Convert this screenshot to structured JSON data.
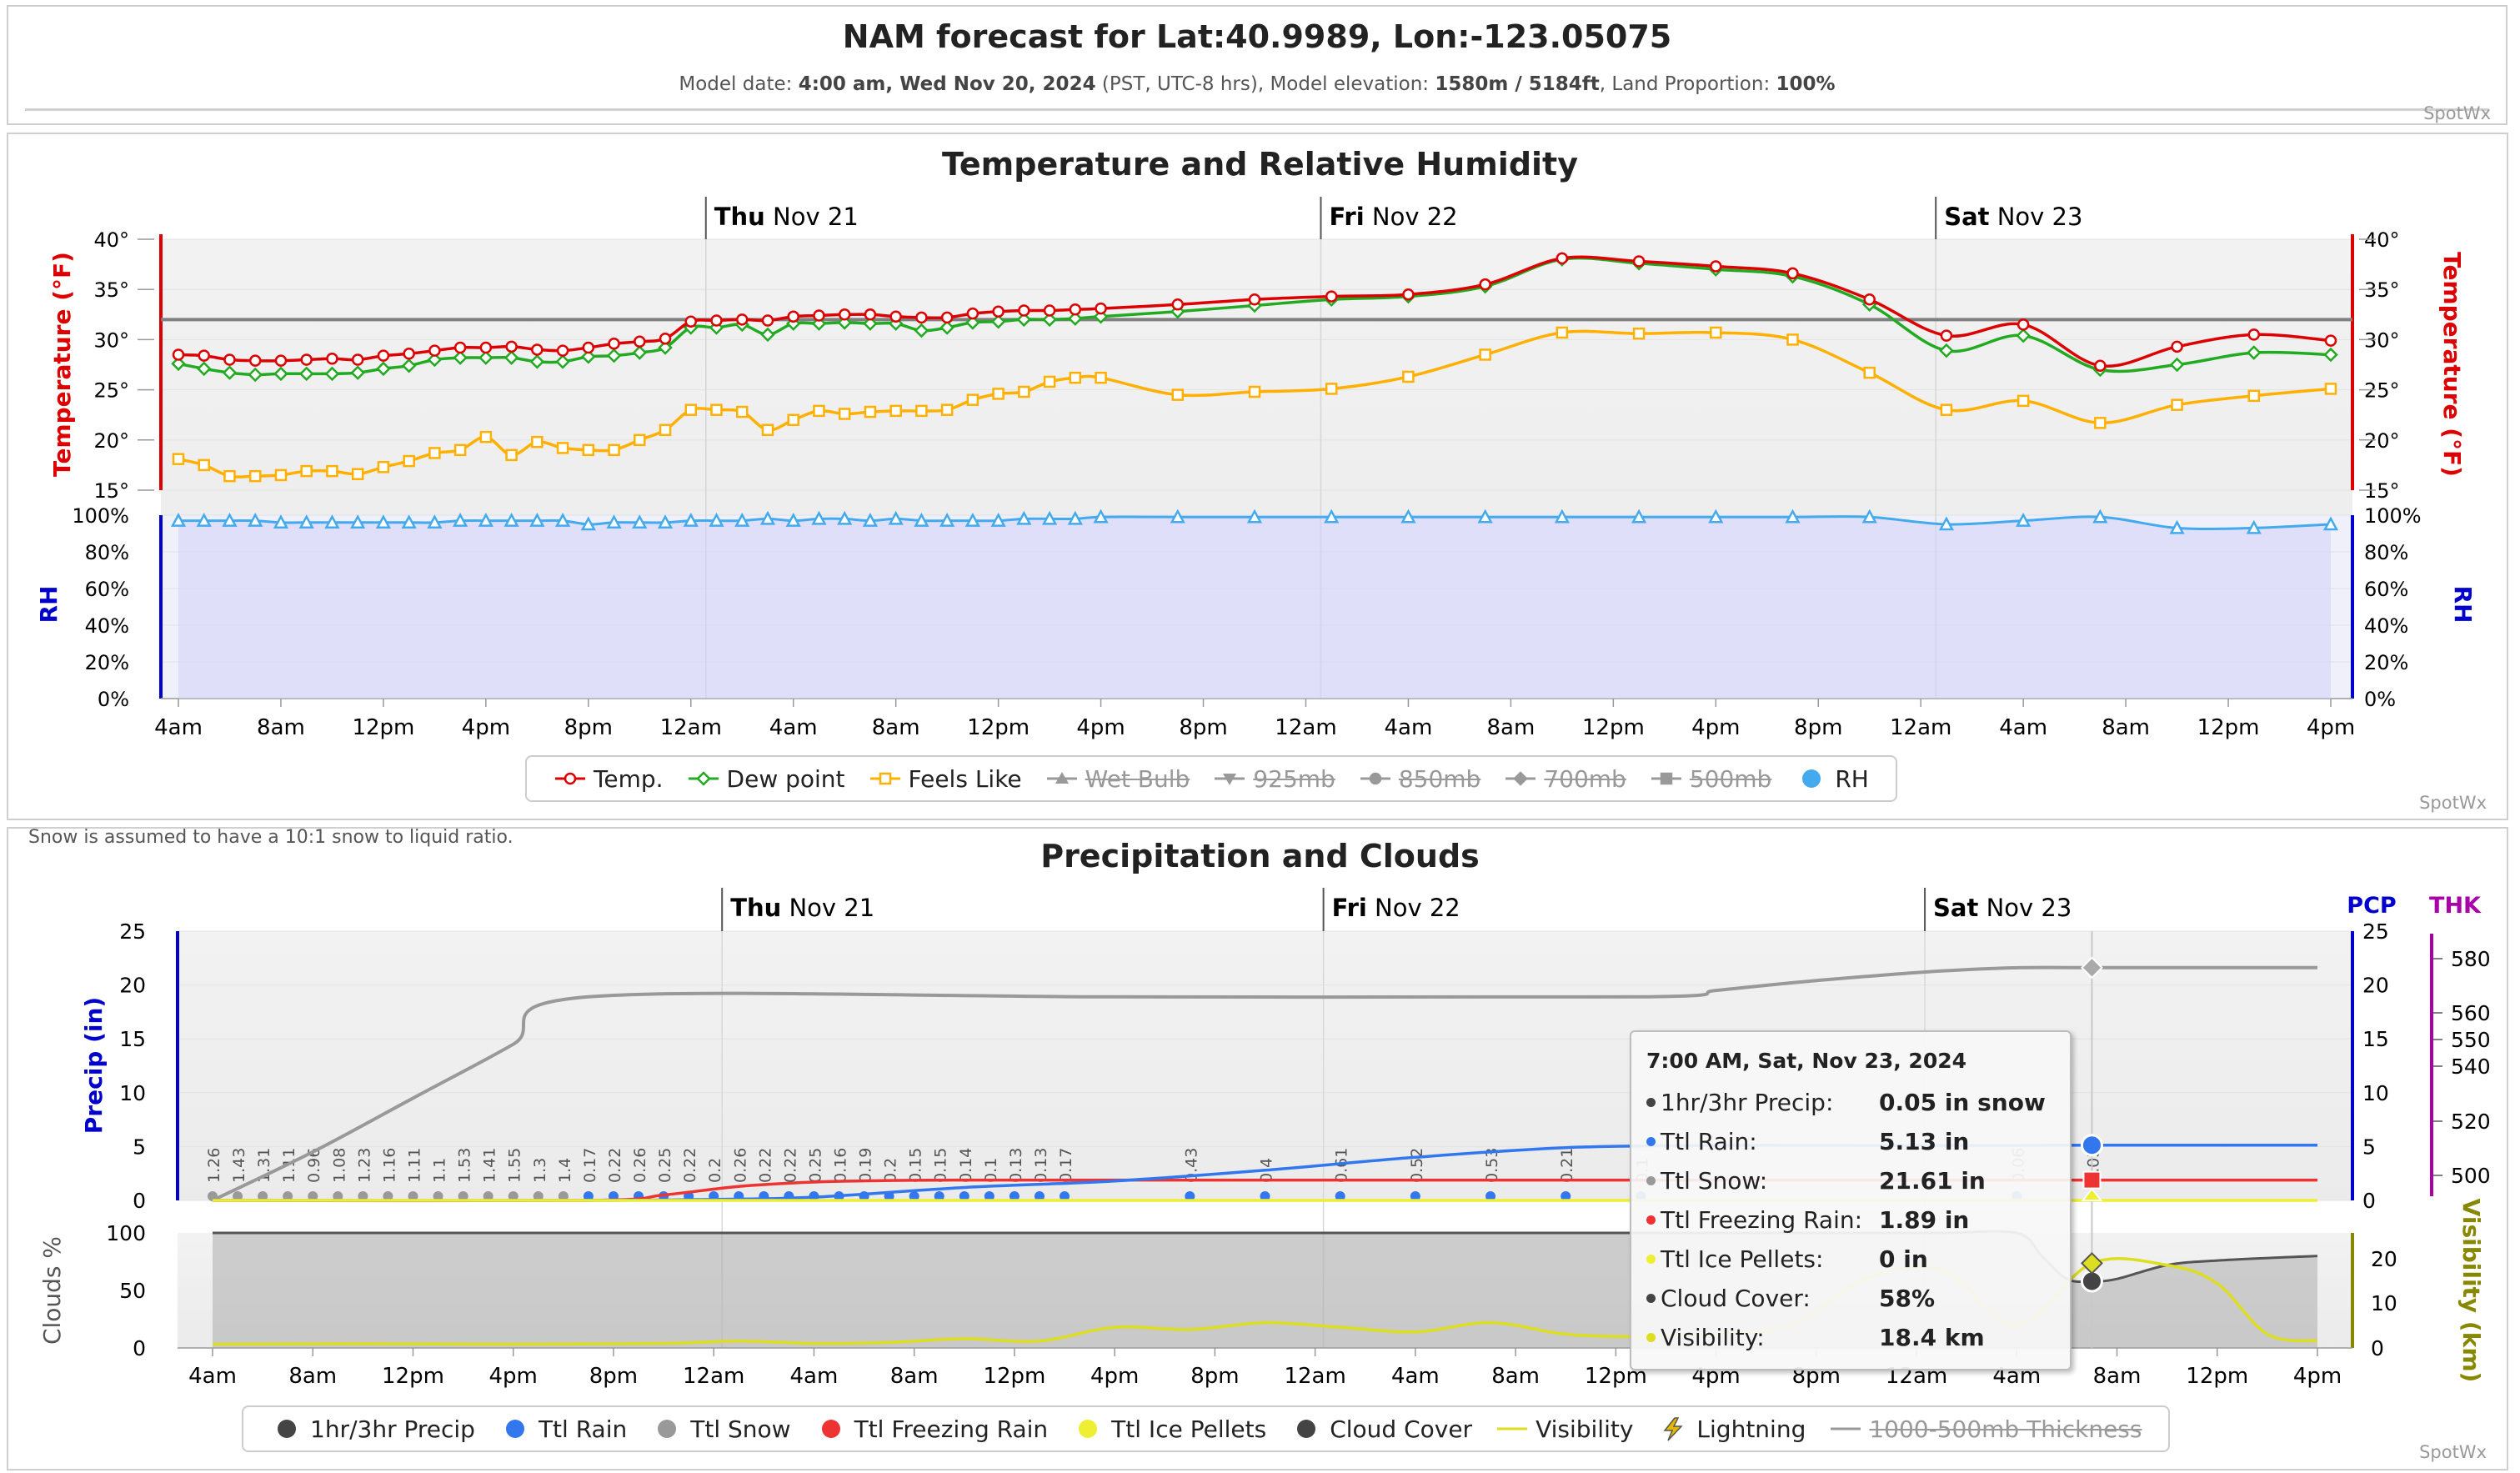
{
  "header": {
    "title": "NAM forecast for Lat:40.9989, Lon:-123.05075",
    "meta": [
      {
        "text": "Model date: ",
        "bold": false
      },
      {
        "text": "4:00 am, Wed Nov 20, 2024",
        "bold": true
      },
      {
        "text": " (PST, UTC-8 hrs), Model elevation: ",
        "bold": false
      },
      {
        "text": "1580m / 5184ft",
        "bold": true
      },
      {
        "text": ", Land Proportion: ",
        "bold": false
      },
      {
        "text": "100%",
        "bold": true
      }
    ],
    "credit": "SpotWx"
  },
  "note": "Snow is assumed to have a 10:1 snow to liquid ratio.",
  "credit": "SpotWx",
  "colors": {
    "temp": "#dd0000",
    "dew": "#22aa22",
    "feels": "#ffb000",
    "rh": "#44aaee",
    "rain": "#3377ee",
    "snow": "#999999",
    "freezing": "#ee3333",
    "ice": "#eeee33",
    "cloud": "#444444",
    "visibility": "#dddd22",
    "thickness": "#888888",
    "axis_left": "#dd0000",
    "axis_rh": "#0000cc",
    "thk_axis": "#aa00aa"
  },
  "time_axis": {
    "labels": [
      "4am",
      "8am",
      "12pm",
      "4pm",
      "8pm",
      "12am",
      "4am",
      "8am",
      "12pm",
      "4pm",
      "8pm",
      "12am",
      "4am",
      "8am",
      "12pm",
      "4pm",
      "8pm",
      "12am",
      "4am",
      "8am",
      "12pm",
      "4pm"
    ],
    "days": [
      {
        "bold": "Thu",
        "rest": " Nov 21",
        "hour": 20
      },
      {
        "bold": "Fri",
        "rest": " Nov 22",
        "hour": 44
      },
      {
        "bold": "Sat",
        "rest": " Nov 23",
        "hour": 68
      }
    ]
  },
  "chart_data": [
    {
      "type": "line",
      "title": "Temperature and Relative Humidity",
      "x_unit": "hours since Wed Nov 20 4am PST",
      "temperature_axis": {
        "label": "Temperature (°F)",
        "ticks": [
          "40°",
          "35°",
          "30°",
          "25°",
          "20°",
          "15°"
        ],
        "ylim": [
          15,
          40
        ]
      },
      "rh_axis": {
        "label": "RH",
        "ticks": [
          "100%",
          "80%",
          "60%",
          "40%",
          "20%",
          "0%"
        ],
        "ylim": [
          0,
          100
        ]
      },
      "reference_line_f": 32,
      "series": [
        {
          "name": "Temp.",
          "key": "temp",
          "marker": "circle",
          "x": [
            0,
            1,
            2,
            3,
            4,
            5,
            6,
            7,
            8,
            9,
            10,
            11,
            12,
            13,
            14,
            15,
            16,
            17,
            18,
            19,
            20,
            21,
            22,
            23,
            24,
            25,
            26,
            27,
            28,
            29,
            30,
            31,
            32,
            33,
            34,
            35,
            36,
            39,
            42,
            45,
            48,
            51,
            54,
            57,
            60,
            63,
            66,
            69,
            72,
            75,
            78,
            81,
            84
          ],
          "y": [
            28.5,
            28.4,
            28.0,
            27.9,
            27.9,
            28.0,
            28.1,
            28.0,
            28.4,
            28.6,
            28.9,
            29.2,
            29.2,
            29.3,
            29.0,
            28.9,
            29.2,
            29.6,
            29.8,
            30.1,
            31.8,
            31.9,
            32.0,
            31.9,
            32.3,
            32.4,
            32.5,
            32.5,
            32.3,
            32.2,
            32.2,
            32.6,
            32.8,
            32.9,
            32.9,
            33.0,
            33.1,
            33.5,
            34.0,
            34.3,
            34.5,
            35.5,
            38.1,
            37.8,
            37.3,
            36.6,
            34.0,
            30.4,
            31.5,
            27.4,
            29.3,
            30.5,
            29.9
          ]
        },
        {
          "name": "Dew point",
          "key": "dew",
          "marker": "diamond",
          "x": [
            0,
            1,
            2,
            3,
            4,
            5,
            6,
            7,
            8,
            9,
            10,
            11,
            12,
            13,
            14,
            15,
            16,
            17,
            18,
            19,
            20,
            21,
            22,
            23,
            24,
            25,
            26,
            27,
            28,
            29,
            30,
            31,
            32,
            33,
            34,
            35,
            36,
            39,
            42,
            45,
            48,
            51,
            54,
            57,
            60,
            63,
            66,
            69,
            72,
            75,
            78,
            81,
            84
          ],
          "y": [
            27.6,
            27.1,
            26.7,
            26.5,
            26.6,
            26.6,
            26.6,
            26.7,
            27.1,
            27.4,
            28.0,
            28.2,
            28.2,
            28.2,
            27.8,
            27.8,
            28.3,
            28.4,
            28.7,
            29.2,
            31.2,
            31.2,
            31.5,
            30.5,
            31.6,
            31.6,
            31.7,
            31.6,
            31.6,
            30.9,
            31.2,
            31.7,
            31.8,
            32.0,
            32.0,
            32.1,
            32.3,
            32.8,
            33.4,
            34.0,
            34.3,
            35.3,
            38.0,
            37.6,
            37.0,
            36.3,
            33.5,
            28.9,
            30.4,
            27.0,
            27.5,
            28.7,
            28.5
          ]
        },
        {
          "name": "Feels Like",
          "key": "feels",
          "marker": "square",
          "x": [
            0,
            1,
            2,
            3,
            4,
            5,
            6,
            7,
            8,
            9,
            10,
            11,
            12,
            13,
            14,
            15,
            16,
            17,
            18,
            19,
            20,
            21,
            22,
            23,
            24,
            25,
            26,
            27,
            28,
            29,
            30,
            31,
            32,
            33,
            34,
            35,
            36,
            39,
            42,
            45,
            48,
            51,
            54,
            57,
            60,
            63,
            66,
            69,
            72,
            75,
            78,
            81,
            84
          ],
          "y": [
            18.1,
            17.5,
            16.4,
            16.4,
            16.5,
            16.9,
            16.9,
            16.6,
            17.3,
            17.9,
            18.7,
            19.0,
            20.3,
            18.5,
            19.8,
            19.2,
            19.0,
            19.0,
            20.0,
            21.0,
            23.0,
            23.0,
            22.8,
            21.0,
            22.0,
            22.9,
            22.6,
            22.8,
            22.9,
            22.9,
            23.0,
            24.0,
            24.6,
            24.8,
            25.8,
            26.2,
            26.2,
            24.5,
            24.8,
            25.1,
            26.3,
            28.5,
            30.7,
            30.6,
            30.7,
            30.0,
            26.7,
            23.0,
            23.9,
            21.7,
            23.5,
            24.4,
            25.1
          ]
        },
        {
          "name": "Wet Bulb",
          "key": "wetbulb",
          "marker": "triangle",
          "hidden": true
        },
        {
          "name": "925mb",
          "key": "925mb",
          "marker": "triangle-down",
          "hidden": true
        },
        {
          "name": "850mb",
          "key": "850mb",
          "marker": "circle",
          "hidden": true
        },
        {
          "name": "700mb",
          "key": "700mb",
          "marker": "diamond",
          "hidden": true
        },
        {
          "name": "500mb",
          "key": "500mb",
          "marker": "square",
          "hidden": true
        },
        {
          "name": "RH",
          "key": "rh",
          "marker": "triangle",
          "axis": "rh",
          "x": [
            0,
            1,
            2,
            3,
            4,
            5,
            6,
            7,
            8,
            9,
            10,
            11,
            12,
            13,
            14,
            15,
            16,
            17,
            18,
            19,
            20,
            21,
            22,
            23,
            24,
            25,
            26,
            27,
            28,
            29,
            30,
            31,
            32,
            33,
            34,
            35,
            36,
            39,
            42,
            45,
            48,
            51,
            54,
            57,
            60,
            63,
            66,
            69,
            72,
            75,
            78,
            81,
            84
          ],
          "y": [
            97,
            97,
            97,
            97,
            96,
            96,
            96,
            96,
            96,
            96,
            96,
            97,
            97,
            97,
            97,
            97,
            95,
            96,
            96,
            96,
            97,
            97,
            97,
            98,
            97,
            98,
            98,
            97,
            98,
            97,
            97,
            97,
            97,
            98,
            98,
            98,
            99,
            99,
            99,
            99,
            99,
            99,
            99,
            99,
            99,
            99,
            99,
            95,
            97,
            99,
            93,
            93,
            95
          ]
        }
      ]
    },
    {
      "type": "line",
      "title": "Precipitation and Clouds",
      "x_unit": "hours since Wed Nov 20 4am PST",
      "precip_axis": {
        "label": "Precip (in)",
        "title": "PCP",
        "ticks": [
          "25",
          "20",
          "15",
          "10",
          "5",
          "0"
        ],
        "ylim": [
          0,
          25
        ]
      },
      "right_pcp_ticks": [
        "25",
        "20",
        "15",
        "10",
        "5",
        "0"
      ],
      "thickness_axis": {
        "title": "THK",
        "ticks": [
          "580",
          "560",
          "550",
          "540",
          "520",
          "500"
        ]
      },
      "clouds_axis": {
        "label": "Clouds %",
        "ticks": [
          "100",
          "50",
          "0"
        ],
        "ylim": [
          0,
          100
        ]
      },
      "visibility_axis": {
        "label": "Visibility (km)",
        "ticks": [
          "20",
          "10",
          "0"
        ],
        "ylim": [
          0,
          25
        ]
      },
      "hourly_precip": {
        "x": [
          0,
          1,
          2,
          3,
          4,
          5,
          6,
          7,
          8,
          9,
          10,
          11,
          12,
          13,
          14,
          15,
          16,
          17,
          18,
          19,
          20,
          21,
          22,
          23,
          24,
          25,
          26,
          27,
          28,
          29,
          30,
          31,
          32,
          33,
          34,
          35,
          36,
          39,
          42,
          45,
          48,
          51,
          54,
          57,
          60,
          63,
          66,
          69,
          72,
          75,
          78,
          81,
          84
        ],
        "values": [
          1.26,
          1.43,
          1.31,
          1.11,
          0.96,
          1.08,
          1.23,
          1.16,
          1.11,
          1.1,
          1.53,
          1.41,
          1.55,
          1.3,
          1.4,
          0.17,
          0.22,
          0.26,
          0.25,
          0.22,
          0.2,
          0.26,
          0.22,
          0.22,
          0.25,
          0.16,
          0.19,
          0.2,
          0.15,
          0.15,
          0.14,
          0.1,
          0.13,
          0.13,
          0.17,
          null,
          null,
          0.43,
          0.4,
          0.61,
          0.52,
          0.53,
          0.21,
          0.1,
          null,
          null,
          null,
          null,
          0.06,
          0.05,
          null,
          null,
          null
        ],
        "labels": [
          "1.26",
          "1.43",
          "1.31",
          "1.11",
          "0.96",
          "1.08",
          "1.23",
          "1.16",
          "1.11",
          "1.1",
          "1.53",
          "1.41",
          "1.55",
          "1.3",
          "1.4",
          "0.17",
          "0.22",
          "0.26",
          "0.25",
          "0.22",
          "0.2",
          "0.26",
          "0.22",
          "0.22",
          "0.25",
          "0.16",
          "0.19",
          "0.2",
          "0.15",
          "0.15",
          "0.14",
          "0.1",
          "0.13",
          "0.13",
          "0.17",
          "",
          "",
          "0.43",
          "0.4",
          "0.61",
          "0.52",
          "0.53",
          "0.21",
          "0.1",
          "",
          "",
          "",
          "",
          "0.06",
          "0.05",
          "",
          "",
          ""
        ]
      },
      "series": [
        {
          "name": "1hr/3hr Precip",
          "key": "cloud",
          "marker": "circle"
        },
        {
          "name": "Ttl Rain",
          "key": "rain",
          "marker": "circle",
          "x": [
            0,
            15,
            20,
            24,
            30,
            36,
            42,
            48,
            54,
            60,
            66,
            72,
            75,
            84
          ],
          "y": [
            0,
            0,
            0.1,
            0.3,
            1.2,
            1.8,
            2.8,
            4.0,
            4.9,
            5.1,
            5.1,
            5.1,
            5.13,
            5.13
          ]
        },
        {
          "name": "Ttl Snow",
          "key": "snow",
          "marker": "circle",
          "x": [
            0,
            4,
            8,
            12,
            15,
            36,
            57,
            60,
            63,
            66,
            69,
            72,
            75,
            84
          ],
          "y": [
            0,
            4.5,
            9.5,
            14.5,
            18.9,
            18.9,
            18.9,
            19.5,
            20.2,
            20.8,
            21.3,
            21.6,
            21.61,
            21.61
          ]
        },
        {
          "name": "Ttl Freezing Rain",
          "key": "freezing",
          "marker": "circle",
          "x": [
            0,
            15,
            18,
            21,
            24,
            27,
            30,
            36,
            45,
            60,
            75,
            84
          ],
          "y": [
            0,
            0,
            0.5,
            1.3,
            1.7,
            1.85,
            1.89,
            1.89,
            1.89,
            1.89,
            1.89,
            1.89
          ]
        },
        {
          "name": "Ttl Ice Pellets",
          "key": "ice",
          "marker": "circle",
          "x": [
            0,
            84
          ],
          "y": [
            0,
            0
          ]
        },
        {
          "name": "Cloud Cover",
          "key": "cloud",
          "marker": "circle",
          "axis": "clouds",
          "x": [
            0,
            20,
            40,
            60,
            63,
            66,
            69,
            72,
            73,
            74,
            75,
            76,
            78,
            80,
            84
          ],
          "y": [
            100,
            100,
            100,
            100,
            100,
            100,
            100,
            100,
            80,
            60,
            58,
            60,
            72,
            76,
            80
          ]
        },
        {
          "name": "Visibility",
          "key": "visibility",
          "marker": "line",
          "axis": "visibility",
          "x": [
            0,
            6,
            12,
            18,
            21,
            24,
            27,
            30,
            33,
            36,
            39,
            42,
            45,
            48,
            51,
            54,
            57,
            60,
            63,
            66,
            69,
            72,
            75,
            78,
            80,
            82,
            84
          ],
          "y": [
            0.8,
            0.9,
            0.8,
            1.0,
            1.5,
            1.0,
            1.2,
            2.0,
            1.5,
            4.5,
            4.0,
            5.5,
            4.5,
            3.5,
            5.5,
            3.0,
            2.5,
            3.0,
            5.0,
            15.0,
            17.0,
            5.0,
            18.4,
            18.0,
            14.0,
            3.0,
            1.5
          ]
        },
        {
          "name": "Lightning",
          "key": "lightning",
          "marker": "bolt"
        },
        {
          "name": "1000-500mb Thickness",
          "key": "thickness",
          "marker": "line",
          "hidden": true
        }
      ],
      "tooltip": {
        "x": 75,
        "title": "7:00 AM, Sat, Nov 23, 2024",
        "rows": [
          {
            "label": "1hr/3hr Precip:",
            "value": "0.05 in snow",
            "key": "cloud"
          },
          {
            "label": "Ttl Rain:",
            "value": "5.13 in",
            "key": "rain"
          },
          {
            "label": "Ttl Snow:",
            "value": "21.61 in",
            "key": "snow"
          },
          {
            "label": "Ttl Freezing Rain:",
            "value": "1.89 in",
            "key": "freezing"
          },
          {
            "label": "Ttl Ice Pellets:",
            "value": "0 in",
            "key": "ice"
          },
          {
            "label": "Cloud Cover:",
            "value": "58%",
            "key": "cloud"
          },
          {
            "label": "Visibility:",
            "value": "18.4 km",
            "key": "visibility"
          }
        ]
      }
    }
  ]
}
